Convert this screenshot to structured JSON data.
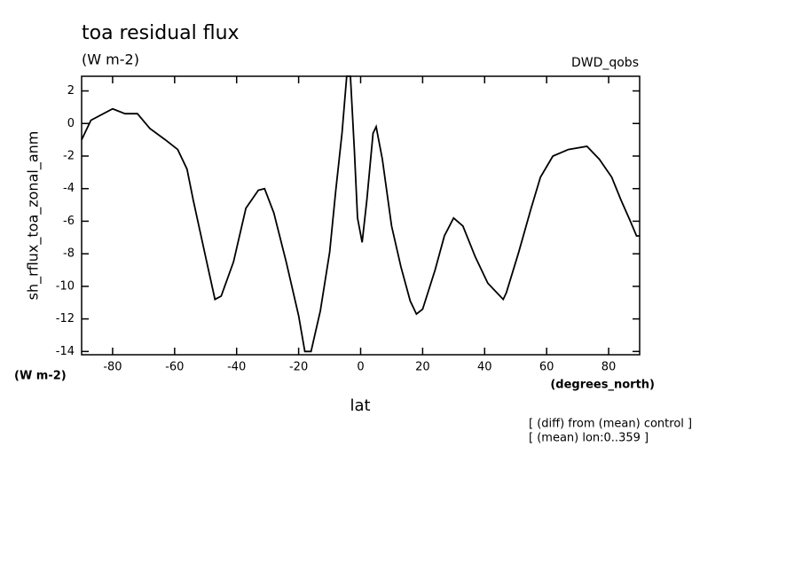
{
  "chart_data": {
    "type": "line",
    "title": "toa residual flux",
    "subtitle": "(W m-2)",
    "experiment": "DWD_qobs",
    "y_label": "sh_rflux_toa_zonal_anm",
    "y_units": "(W m-2)",
    "x_units": "(degrees_north)",
    "x_label": "lat",
    "notes": [
      "[ (diff) from (mean) control ]",
      "[ (mean) lon:0..359 ]"
    ],
    "x": [
      -90,
      -87,
      -80,
      -76,
      -72,
      -68,
      -63,
      -59,
      -56,
      -54,
      -50,
      -47,
      -45,
      -41,
      -37,
      -33,
      -31,
      -28,
      -24,
      -20,
      -18,
      -16,
      -13,
      -10,
      -8,
      -6,
      -4.5,
      -3.3,
      -2,
      -1,
      0.5,
      2,
      4,
      5,
      7,
      10,
      13,
      16,
      18,
      20,
      24,
      27,
      30,
      33,
      37,
      41,
      46,
      47,
      51,
      55,
      58,
      62,
      67,
      73,
      77,
      81,
      84,
      87,
      89,
      90
    ],
    "series": [
      {
        "name": "sh_rflux_toa_zonal_anm",
        "color": "#000000",
        "values": [
          -1.0,
          0.2,
          0.9,
          0.6,
          0.6,
          -0.3,
          -1.0,
          -1.6,
          -2.8,
          -4.7,
          -8.2,
          -10.8,
          -10.6,
          -8.5,
          -5.2,
          -4.1,
          -4.0,
          -5.5,
          -8.5,
          -11.8,
          -14,
          -14,
          -11.5,
          -7.9,
          -4.1,
          -0.6,
          2.9,
          2.9,
          -1.7,
          -5.8,
          -7.3,
          -4.7,
          -0.6,
          -0.2,
          -2.2,
          -6.3,
          -8.8,
          -10.9,
          -11.7,
          -11.4,
          -9.0,
          -6.9,
          -5.8,
          -6.3,
          -8.2,
          -9.8,
          -10.8,
          -10.4,
          -7.9,
          -5.2,
          -3.3,
          -2.0,
          -1.6,
          -1.4,
          -2.2,
          -3.3,
          -4.7,
          -6.0,
          -6.9,
          -6.9
        ]
      }
    ],
    "xlim": [
      -90,
      90
    ],
    "xticks": [
      -80,
      -60,
      -40,
      -20,
      0,
      20,
      40,
      60,
      80
    ],
    "ylim": [
      -14.2,
      2.9
    ],
    "yticks": [
      2,
      0,
      -2,
      -4,
      -6,
      -8,
      -10,
      -12,
      -14
    ]
  }
}
